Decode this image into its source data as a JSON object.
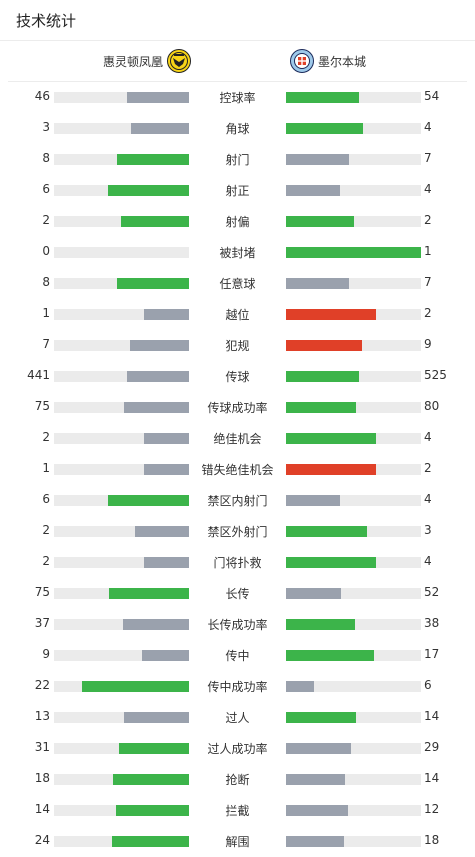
{
  "title": "技术统计",
  "home": {
    "name": "惠灵顿凤凰",
    "badge_icon": "wellington-phoenix-badge-icon"
  },
  "away": {
    "name": "墨尔本城",
    "badge_icon": "melbourne-city-badge-icon"
  },
  "colors": {
    "green": "#3cb44a",
    "gray": "#9aa1ad",
    "red": "#e04028",
    "track": "#ebebeb"
  },
  "stats": [
    {
      "label": "控球率",
      "home": "46",
      "away": "54",
      "home_fill": 0.46,
      "away_fill": 0.54,
      "home_color": "gray",
      "away_color": "green"
    },
    {
      "label": "角球",
      "home": "3",
      "away": "4",
      "home_fill": 0.43,
      "away_fill": 0.57,
      "home_color": "gray",
      "away_color": "green"
    },
    {
      "label": "射门",
      "home": "8",
      "away": "7",
      "home_fill": 0.53,
      "away_fill": 0.47,
      "home_color": "green",
      "away_color": "gray"
    },
    {
      "label": "射正",
      "home": "6",
      "away": "4",
      "home_fill": 0.6,
      "away_fill": 0.4,
      "home_color": "green",
      "away_color": "gray"
    },
    {
      "label": "射偏",
      "home": "2",
      "away": "2",
      "home_fill": 0.5,
      "away_fill": 0.5,
      "home_color": "green",
      "away_color": "green"
    },
    {
      "label": "被封堵",
      "home": "0",
      "away": "1",
      "home_fill": 0.0,
      "away_fill": 1.0,
      "home_color": "gray",
      "away_color": "green"
    },
    {
      "label": "任意球",
      "home": "8",
      "away": "7",
      "home_fill": 0.53,
      "away_fill": 0.47,
      "home_color": "green",
      "away_color": "gray"
    },
    {
      "label": "越位",
      "home": "1",
      "away": "2",
      "home_fill": 0.33,
      "away_fill": 0.67,
      "home_color": "gray",
      "away_color": "red"
    },
    {
      "label": "犯规",
      "home": "7",
      "away": "9",
      "home_fill": 0.44,
      "away_fill": 0.56,
      "home_color": "gray",
      "away_color": "red"
    },
    {
      "label": "传球",
      "home": "441",
      "away": "525",
      "home_fill": 0.46,
      "away_fill": 0.54,
      "home_color": "gray",
      "away_color": "green"
    },
    {
      "label": "传球成功率",
      "home": "75",
      "away": "80",
      "home_fill": 0.48,
      "away_fill": 0.52,
      "home_color": "gray",
      "away_color": "green"
    },
    {
      "label": "绝佳机会",
      "home": "2",
      "away": "4",
      "home_fill": 0.33,
      "away_fill": 0.67,
      "home_color": "gray",
      "away_color": "green"
    },
    {
      "label": "错失绝佳机会",
      "home": "1",
      "away": "2",
      "home_fill": 0.33,
      "away_fill": 0.67,
      "home_color": "gray",
      "away_color": "red"
    },
    {
      "label": "禁区内射门",
      "home": "6",
      "away": "4",
      "home_fill": 0.6,
      "away_fill": 0.4,
      "home_color": "green",
      "away_color": "gray"
    },
    {
      "label": "禁区外射门",
      "home": "2",
      "away": "3",
      "home_fill": 0.4,
      "away_fill": 0.6,
      "home_color": "gray",
      "away_color": "green"
    },
    {
      "label": "门将扑救",
      "home": "2",
      "away": "4",
      "home_fill": 0.33,
      "away_fill": 0.67,
      "home_color": "gray",
      "away_color": "green"
    },
    {
      "label": "长传",
      "home": "75",
      "away": "52",
      "home_fill": 0.59,
      "away_fill": 0.41,
      "home_color": "green",
      "away_color": "gray"
    },
    {
      "label": "长传成功率",
      "home": "37",
      "away": "38",
      "home_fill": 0.49,
      "away_fill": 0.51,
      "home_color": "gray",
      "away_color": "green"
    },
    {
      "label": "传中",
      "home": "9",
      "away": "17",
      "home_fill": 0.35,
      "away_fill": 0.65,
      "home_color": "gray",
      "away_color": "green"
    },
    {
      "label": "传中成功率",
      "home": "22",
      "away": "6",
      "home_fill": 0.79,
      "away_fill": 0.21,
      "home_color": "green",
      "away_color": "gray"
    },
    {
      "label": "过人",
      "home": "13",
      "away": "14",
      "home_fill": 0.48,
      "away_fill": 0.52,
      "home_color": "gray",
      "away_color": "green"
    },
    {
      "label": "过人成功率",
      "home": "31",
      "away": "29",
      "home_fill": 0.52,
      "away_fill": 0.48,
      "home_color": "green",
      "away_color": "gray"
    },
    {
      "label": "抢断",
      "home": "18",
      "away": "14",
      "home_fill": 0.56,
      "away_fill": 0.44,
      "home_color": "green",
      "away_color": "gray"
    },
    {
      "label": "拦截",
      "home": "14",
      "away": "12",
      "home_fill": 0.54,
      "away_fill": 0.46,
      "home_color": "green",
      "away_color": "gray"
    },
    {
      "label": "解围",
      "home": "24",
      "away": "18",
      "home_fill": 0.57,
      "away_fill": 0.43,
      "home_color": "green",
      "away_color": "gray"
    }
  ]
}
